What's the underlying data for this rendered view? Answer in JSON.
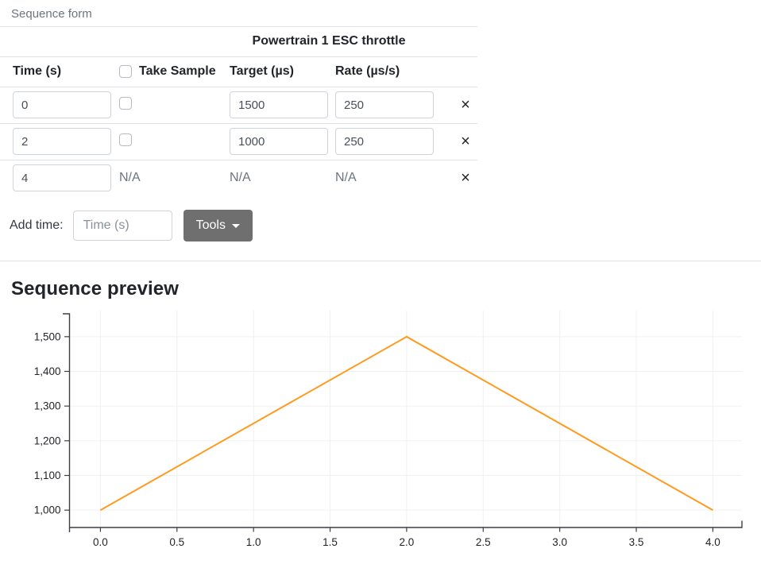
{
  "form": {
    "title": "Sequence form",
    "table": {
      "group_header": "Powertrain 1 ESC throttle",
      "columns": [
        "Time (s)",
        "Take Sample",
        "Target (µs)",
        "Rate (µs/s)"
      ],
      "delete_label": "×",
      "na_label": "N/A",
      "rows": [
        {
          "time": "0",
          "take_sample": false,
          "target": "1500",
          "rate": "250"
        },
        {
          "time": "2",
          "take_sample": false,
          "target": "1000",
          "rate": "250"
        },
        {
          "time": "4",
          "take_sample": "N/A",
          "target": "N/A",
          "rate": "N/A"
        }
      ]
    },
    "add_time": {
      "label": "Add time:",
      "placeholder": "Time (s)",
      "tools_label": "Tools"
    }
  },
  "preview": {
    "title": "Sequence preview"
  },
  "chart_data": {
    "type": "line",
    "title": "",
    "xlabel": "",
    "ylabel": "",
    "series": [
      {
        "name": "Powertrain 1 ESC throttle",
        "points": [
          [
            0,
            1000
          ],
          [
            2,
            1500
          ],
          [
            4,
            1000
          ]
        ],
        "color": "#ff9a1e"
      }
    ],
    "xticks": [
      {
        "v": 0.0,
        "label": "0.0"
      },
      {
        "v": 0.5,
        "label": "0.5"
      },
      {
        "v": 1.0,
        "label": "1.0"
      },
      {
        "v": 1.5,
        "label": "1.5"
      },
      {
        "v": 2.0,
        "label": "2.0"
      },
      {
        "v": 2.5,
        "label": "2.5"
      },
      {
        "v": 3.0,
        "label": "3.0"
      },
      {
        "v": 3.5,
        "label": "3.5"
      },
      {
        "v": 4.0,
        "label": "4.0"
      }
    ],
    "yticks": [
      {
        "v": 1000,
        "label": "1,000"
      },
      {
        "v": 1100,
        "label": "1,100"
      },
      {
        "v": 1200,
        "label": "1,200"
      },
      {
        "v": 1300,
        "label": "1,300"
      },
      {
        "v": 1400,
        "label": "1,400"
      },
      {
        "v": 1500,
        "label": "1,500"
      }
    ],
    "xlim": [
      -0.202,
      4.19
    ],
    "ylim": [
      950,
      1566
    ],
    "grid": true,
    "legend": false,
    "axis_color": "#3a3f44",
    "grid_color": "#f0f0f0",
    "tick_text_color": "#212529"
  }
}
